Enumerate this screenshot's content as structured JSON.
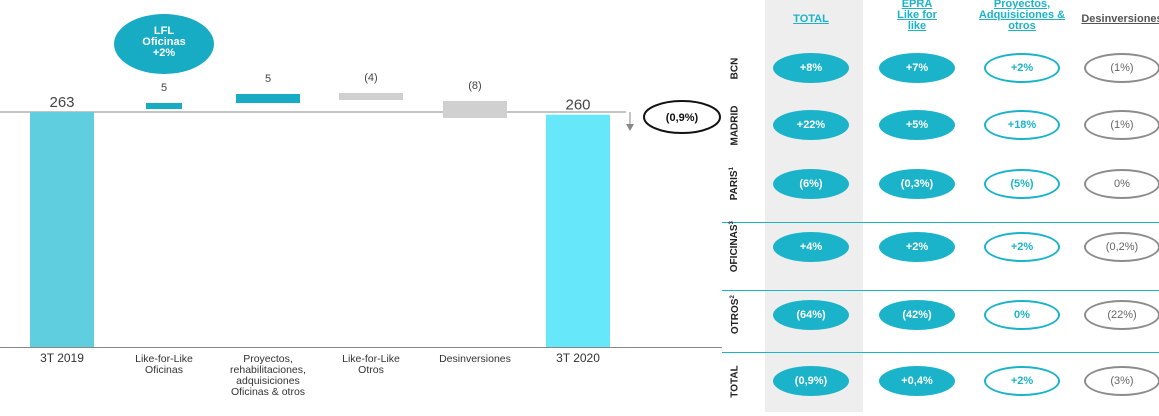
{
  "chart_data": {
    "type": "bar",
    "subtype": "waterfall",
    "categories": [
      "3T 2019",
      "Like-for-Like Oficinas",
      "Proyectos, rehabilitaciones, adquisiciones Oficinas & otros",
      "Like-for-Like Otros",
      "Desinversiones",
      "3T 2020"
    ],
    "category_lines": [
      [
        "3T 2019"
      ],
      [
        "Like-for-Like",
        "Oficinas"
      ],
      [
        "Proyectos,",
        "rehabilitaciones,",
        "adquisiciones",
        "Oficinas & otros"
      ],
      [
        "Like-for-Like",
        "Otros"
      ],
      [
        "Desinversiones"
      ],
      [
        "3T 2020"
      ]
    ],
    "values": [
      263,
      5,
      5,
      -4,
      -8,
      260
    ],
    "value_labels": [
      "263",
      "5",
      "5",
      "(4)",
      "(8)",
      "260"
    ],
    "change_label": "(0,9%)",
    "callout": [
      "LFL",
      "Oficinas",
      "+2%"
    ],
    "colors": {
      "total_start": "#5fcfe0",
      "total_end": "#66e8fa",
      "positive": "#17abc4",
      "negative": "#d0d0d0",
      "baseline": "#888888"
    }
  },
  "table": {
    "columns": [
      {
        "lines": [
          "TOTAL"
        ],
        "style": "teal"
      },
      {
        "lines": [
          "EPRA",
          "Like for",
          "like"
        ],
        "style": "teal"
      },
      {
        "lines": [
          "Proyectos,",
          "Adquisiciones &",
          "otros"
        ],
        "style": "teal"
      },
      {
        "lines": [
          "Desinversiones"
        ],
        "style": "grey"
      }
    ],
    "rows": [
      {
        "label": "BCN",
        "sup": "",
        "values": [
          "+8%",
          "+7%",
          "+2%",
          "(1%)"
        ]
      },
      {
        "label": "MADRID",
        "sup": "",
        "values": [
          "+22%",
          "+5%",
          "+18%",
          "(1%)"
        ]
      },
      {
        "label": "PARIS",
        "sup": "1",
        "values": [
          "(6%)",
          "(0,3%)",
          "(5%)",
          "0%"
        ]
      },
      {
        "label": "OFICINAS",
        "sup": "3",
        "values": [
          "+4%",
          "+2%",
          "+2%",
          "(0,2%)"
        ]
      },
      {
        "label": "OTROS",
        "sup": "2",
        "values": [
          "(64%)",
          "(42%)",
          "0%",
          "(22%)"
        ]
      },
      {
        "label": "TOTAL",
        "sup": "",
        "values": [
          "(0,9%)",
          "+0,4%",
          "+2%",
          "(3%)"
        ]
      }
    ],
    "colors": {
      "teal": "#1bb3c9",
      "grey": "#8c8c8c",
      "column_shade": "#eeeeee"
    }
  }
}
